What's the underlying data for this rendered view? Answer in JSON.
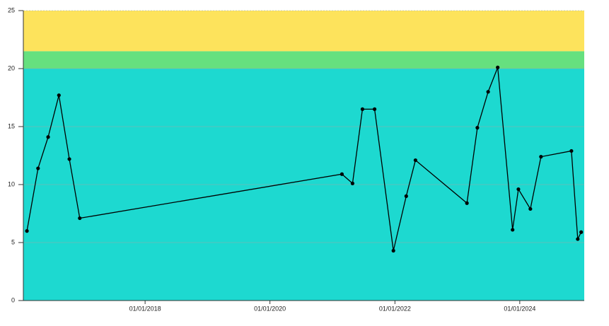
{
  "chart_data": {
    "type": "line",
    "x": [
      "2016-02-10",
      "2016-04-15",
      "2016-06-13",
      "2016-08-15",
      "2016-10-15",
      "2016-12-15",
      "2021-02-25",
      "2021-04-28",
      "2021-06-25",
      "2021-09-04",
      "2021-12-23",
      "2022-03-08",
      "2022-05-01",
      "2023-02-26",
      "2023-04-28",
      "2023-06-30",
      "2023-08-25",
      "2023-11-20",
      "2023-12-24",
      "2024-03-03",
      "2024-05-04",
      "2024-10-29",
      "2024-12-05",
      "2024-12-25"
    ],
    "values": [
      6.0,
      11.4,
      14.1,
      17.7,
      12.2,
      7.1,
      10.9,
      10.1,
      16.5,
      16.5,
      4.3,
      9.0,
      12.1,
      8.4,
      14.9,
      18.0,
      20.1,
      6.1,
      9.6,
      7.9,
      12.4,
      12.9,
      5.3,
      5.9
    ],
    "color": "#000000",
    "xlim": [
      "2016-01-20",
      "2025-01-12"
    ],
    "xticks": [
      {
        "value": "2018-01-01",
        "label": "01/01/2018"
      },
      {
        "value": "2020-01-01",
        "label": "01/01/2020"
      },
      {
        "value": "2022-01-01",
        "label": "01/01/2022"
      },
      {
        "value": "2024-01-01",
        "label": "01/01/2024"
      }
    ],
    "ylim": [
      0,
      25
    ],
    "yticks": [
      0,
      5,
      10,
      15,
      20,
      25
    ],
    "grid": true,
    "bands": [
      {
        "from": 0,
        "to": 20,
        "color": "#1dd9d0"
      },
      {
        "from": 20,
        "to": 21.5,
        "color": "#66e07f"
      },
      {
        "from": 21.5,
        "to": 25,
        "color": "#fde35c"
      }
    ]
  }
}
